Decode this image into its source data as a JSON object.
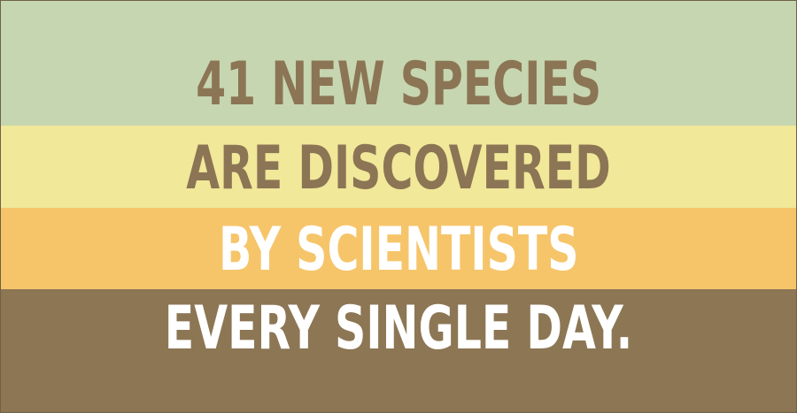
{
  "lines": [
    {
      "text": "41 NEW SPECIES",
      "color": "#8b7555"
    },
    {
      "text": "ARE DISCOVERED",
      "color": "#8b7555"
    },
    {
      "text": "BY SCIENTISTS",
      "color": "#ffffff"
    },
    {
      "text": "EVERY SINGLE DAY.",
      "color": "#ffffff"
    }
  ],
  "bands": {
    "band_1_color": "#c6d6b0",
    "band_2_color": "#f1e899",
    "band_3_color": "#f6c56a",
    "band_4_color": "#8c7654"
  }
}
